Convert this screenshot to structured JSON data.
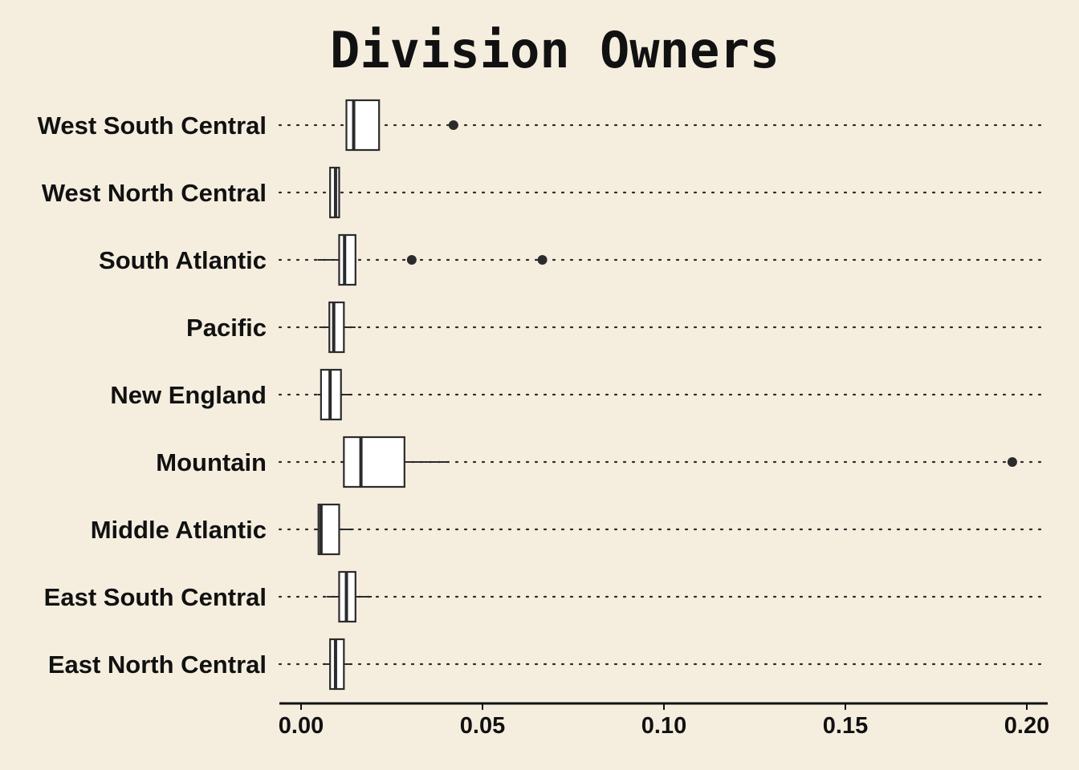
{
  "chart_data": {
    "type": "boxplot",
    "title": "Division Owners",
    "xlabel": "",
    "ylabel": "",
    "xlim": [
      -0.006,
      0.205
    ],
    "x_ticks": [
      0.0,
      0.05,
      0.1,
      0.15,
      0.2
    ],
    "x_tick_labels": [
      "0.00",
      "0.05",
      "0.10",
      "0.15",
      "0.20"
    ],
    "grid": "horizontal dotted lines per category",
    "categories": [
      "West South Central",
      "West North Central",
      "South Atlantic",
      "Pacific",
      "New England",
      "Mountain",
      "Middle Atlantic",
      "East South Central",
      "East North Central"
    ],
    "boxes": [
      {
        "category": "West South Central",
        "min": 0.0125,
        "q1": 0.0125,
        "median": 0.0145,
        "q3": 0.0215,
        "max": 0.0215,
        "outliers": [
          0.042
        ]
      },
      {
        "category": "West North Central",
        "min": 0.008,
        "q1": 0.008,
        "median": 0.0095,
        "q3": 0.0105,
        "max": 0.0105,
        "outliers": []
      },
      {
        "category": "South Atlantic",
        "min": 0.0045,
        "q1": 0.0105,
        "median": 0.012,
        "q3": 0.015,
        "max": 0.015,
        "outliers": [
          0.0305,
          0.0665
        ]
      },
      {
        "category": "Pacific",
        "min": 0.005,
        "q1": 0.0078,
        "median": 0.009,
        "q3": 0.0118,
        "max": 0.015,
        "outliers": []
      },
      {
        "category": "New England",
        "min": 0.0045,
        "q1": 0.0055,
        "median": 0.008,
        "q3": 0.011,
        "max": 0.014,
        "outliers": []
      },
      {
        "category": "Mountain",
        "min": 0.0115,
        "q1": 0.0118,
        "median": 0.0165,
        "q3": 0.0285,
        "max": 0.0405,
        "outliers": [
          0.196
        ]
      },
      {
        "category": "Middle Atlantic",
        "min": 0.004,
        "q1": 0.0048,
        "median": 0.0055,
        "q3": 0.0105,
        "max": 0.0145,
        "outliers": []
      },
      {
        "category": "East South Central",
        "min": 0.007,
        "q1": 0.0105,
        "median": 0.0125,
        "q3": 0.015,
        "max": 0.0195,
        "outliers": []
      },
      {
        "category": "East North Central",
        "min": 0.006,
        "q1": 0.008,
        "median": 0.0095,
        "q3": 0.0118,
        "max": 0.014,
        "outliers": []
      }
    ]
  },
  "colors": {
    "background": "#f5eedf",
    "box_fill": "#ffffff",
    "stroke": "#2b2b2b",
    "text": "#111111"
  }
}
